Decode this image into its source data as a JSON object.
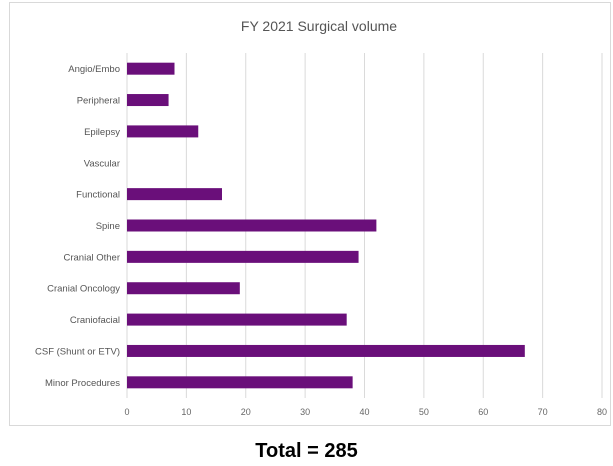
{
  "chart_data": {
    "type": "bar",
    "orientation": "horizontal",
    "title": "FY 2021 Surgical volume",
    "categories": [
      "Angio/Embo",
      "Peripheral",
      "Epilepsy",
      "Vascular",
      "Functional",
      "Spine",
      "Cranial Other",
      "Cranial Oncology",
      "Craniofacial",
      "CSF (Shunt or ETV)",
      "Minor Procedures"
    ],
    "values": [
      8,
      7,
      12,
      0,
      16,
      42,
      39,
      19,
      37,
      67,
      38
    ],
    "xticks": [
      "0",
      "10",
      "20",
      "30",
      "40",
      "50",
      "60",
      "70",
      "80"
    ],
    "xlim": [
      0,
      80
    ],
    "grid": "vertical",
    "legend": "none",
    "bar_color": "#6a0f7a"
  },
  "footer": {
    "total_text": "Total = 285"
  }
}
